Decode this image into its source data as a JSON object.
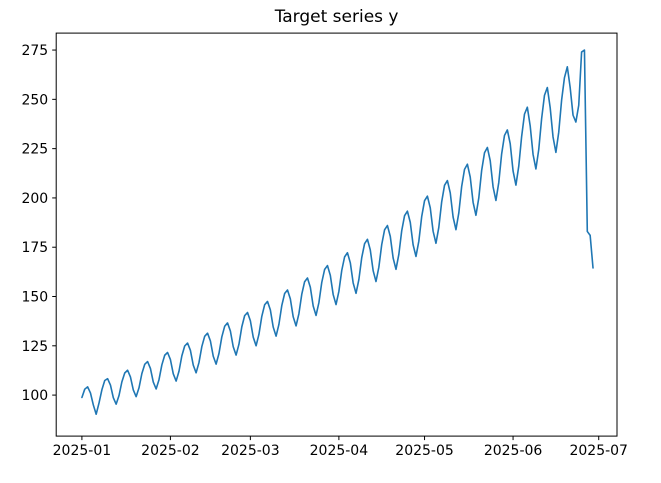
{
  "chart_data": {
    "type": "line",
    "title": "Target series y",
    "series_name": "y",
    "x_start_date": "2025-01-01",
    "x_frequency": "daily",
    "grid": false,
    "legend": "none",
    "background": "#ffffff",
    "line_color": "#1f77b4",
    "axes_color": "#000000",
    "xlim_days": [
      -9.0,
      187.4
    ],
    "ylim": [
      79.2,
      283.6
    ],
    "y_ticks": [
      100,
      125,
      150,
      175,
      200,
      225,
      250,
      275
    ],
    "x_ticks": [
      {
        "label": "2025-01",
        "day": 0
      },
      {
        "label": "2025-02",
        "day": 31
      },
      {
        "label": "2025-03",
        "day": 59
      },
      {
        "label": "2025-04",
        "day": 90
      },
      {
        "label": "2025-05",
        "day": 120
      },
      {
        "label": "2025-06",
        "day": 151
      },
      {
        "label": "2025-07",
        "day": 181
      }
    ],
    "y": [
      98.8,
      103.0,
      104.2,
      101.1,
      95.0,
      90.3,
      96.0,
      102.7,
      107.4,
      108.3,
      105.1,
      98.7,
      95.4,
      99.8,
      106.7,
      111.2,
      112.6,
      109.2,
      102.6,
      99.2,
      103.7,
      110.9,
      115.6,
      117.0,
      113.5,
      106.6,
      103.1,
      107.8,
      115.3,
      120.2,
      121.6,
      118.0,
      110.8,
      107.1,
      112.1,
      119.9,
      124.9,
      126.4,
      122.7,
      115.2,
      111.3,
      116.5,
      124.6,
      129.8,
      131.4,
      127.5,
      119.7,
      115.7,
      121.1,
      129.5,
      134.9,
      136.6,
      132.5,
      124.5,
      120.3,
      125.8,
      134.6,
      140.3,
      141.9,
      137.7,
      129.4,
      125.0,
      130.8,
      139.9,
      145.8,
      147.5,
      143.2,
      134.5,
      129.9,
      135.9,
      145.4,
      151.5,
      153.3,
      148.8,
      139.7,
      135.1,
      141.3,
      151.1,
      157.5,
      159.4,
      154.7,
      145.2,
      140.4,
      146.9,
      157.1,
      163.7,
      165.7,
      160.7,
      151.0,
      145.9,
      152.6,
      163.2,
      170.1,
      172.2,
      167.1,
      156.9,
      151.6,
      158.6,
      169.7,
      176.8,
      179.0,
      173.6,
      163.1,
      157.6,
      164.9,
      176.3,
      183.8,
      186.0,
      180.5,
      169.5,
      163.8,
      171.4,
      183.3,
      191.0,
      193.3,
      187.6,
      176.2,
      170.3,
      178.1,
      190.5,
      198.6,
      200.9,
      195.0,
      183.1,
      177.0,
      185.1,
      198.0,
      206.4,
      208.8,
      202.6,
      190.3,
      183.9,
      192.4,
      205.8,
      214.5,
      217.1,
      210.6,
      197.8,
      191.2,
      200.0,
      213.9,
      222.9,
      225.6,
      218.9,
      205.6,
      198.7,
      207.9,
      222.3,
      231.7,
      234.5,
      227.5,
      213.7,
      206.5,
      216.1,
      231.1,
      242.5,
      246.0,
      236.5,
      222.1,
      214.7,
      224.6,
      240.2,
      252.0,
      256.0,
      245.8,
      230.9,
      223.1,
      233.4,
      249.6,
      261.0,
      266.5,
      256.0,
      242.0,
      238.5,
      247.0,
      274.0,
      275.0,
      183.0,
      181.0,
      164.5
    ]
  }
}
